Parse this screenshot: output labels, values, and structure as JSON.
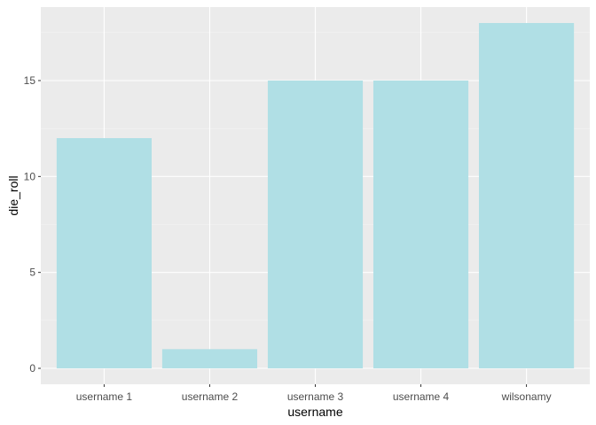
{
  "chart_data": {
    "type": "bar",
    "categories": [
      "username 1",
      "username 2",
      "username 3",
      "username 4",
      "wilsonamy"
    ],
    "values": [
      12,
      1,
      15,
      15,
      18
    ],
    "xlabel": "username",
    "ylabel": "die_roll",
    "yticks": [
      0,
      5,
      10,
      15
    ],
    "ylim": [
      0,
      18.9
    ],
    "grid": true,
    "colors": {
      "bar": "#b0dfe5",
      "panel": "#ebebeb",
      "grid_major": "#ffffff",
      "grid_minor": "#f5f5f5"
    }
  }
}
